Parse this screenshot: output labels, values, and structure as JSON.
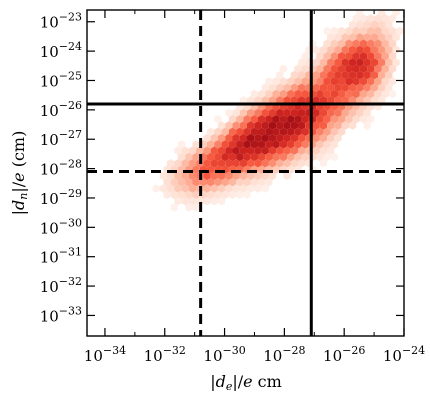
{
  "chart_data": {
    "type": "heatmap",
    "subtype": "hexbin-density",
    "title": "",
    "xlabel": "|d_e|/e cm",
    "ylabel": "|d_n|/e (cm)",
    "x_scale": "log",
    "y_scale": "log",
    "xlim_log10": [
      -34.6,
      -24
    ],
    "ylim_log10": [
      -33.7,
      -22.6
    ],
    "x_ticks": [
      {
        "exp": -34,
        "label": "−34"
      },
      {
        "exp": -32,
        "label": "−32"
      },
      {
        "exp": -30,
        "label": "−30"
      },
      {
        "exp": -28,
        "label": "−28"
      },
      {
        "exp": -26,
        "label": "−26"
      },
      {
        "exp": -24,
        "label": "−24"
      }
    ],
    "y_ticks": [
      {
        "exp": -33,
        "label": "−33"
      },
      {
        "exp": -32,
        "label": "−32"
      },
      {
        "exp": -31,
        "label": "−31"
      },
      {
        "exp": -30,
        "label": "−30"
      },
      {
        "exp": -29,
        "label": "−29"
      },
      {
        "exp": -28,
        "label": "−28"
      },
      {
        "exp": -27,
        "label": "−27"
      },
      {
        "exp": -26,
        "label": "−26"
      },
      {
        "exp": -25,
        "label": "−25"
      },
      {
        "exp": -24,
        "label": "−24"
      },
      {
        "exp": -23,
        "label": "−23"
      }
    ],
    "tick_base": "10",
    "grid": false,
    "colormap": [
      "#fff5f0",
      "#fdd0bd",
      "#fc9373",
      "#f5553c",
      "#d22621",
      "#a50f15"
    ],
    "reference_lines": [
      {
        "orientation": "vertical",
        "style": "solid",
        "x_log10": -27.1
      },
      {
        "orientation": "vertical",
        "style": "dashed",
        "x_log10": -30.8
      },
      {
        "orientation": "horizontal",
        "style": "solid",
        "y_log10": -25.8
      },
      {
        "orientation": "horizontal",
        "style": "dashed",
        "y_log10": -28.1
      }
    ],
    "density_ridge": {
      "x_log10": [
        -31.5,
        -31,
        -30.5,
        -30,
        -29.5,
        -29,
        -28.5,
        -28,
        -27.5,
        -27,
        -26.5,
        -26,
        -25.5,
        -25,
        -24.5
      ],
      "y_log10": [
        -28.3,
        -28.2,
        -28.0,
        -27.7,
        -27.4,
        -27.1,
        -26.8,
        -26.5,
        -26.2,
        -25.9,
        -25.5,
        -25.1,
        -24.7,
        -24.3,
        -23.9
      ]
    },
    "density_core": {
      "x_log10": -28.5,
      "y_log10": -26.8
    }
  }
}
